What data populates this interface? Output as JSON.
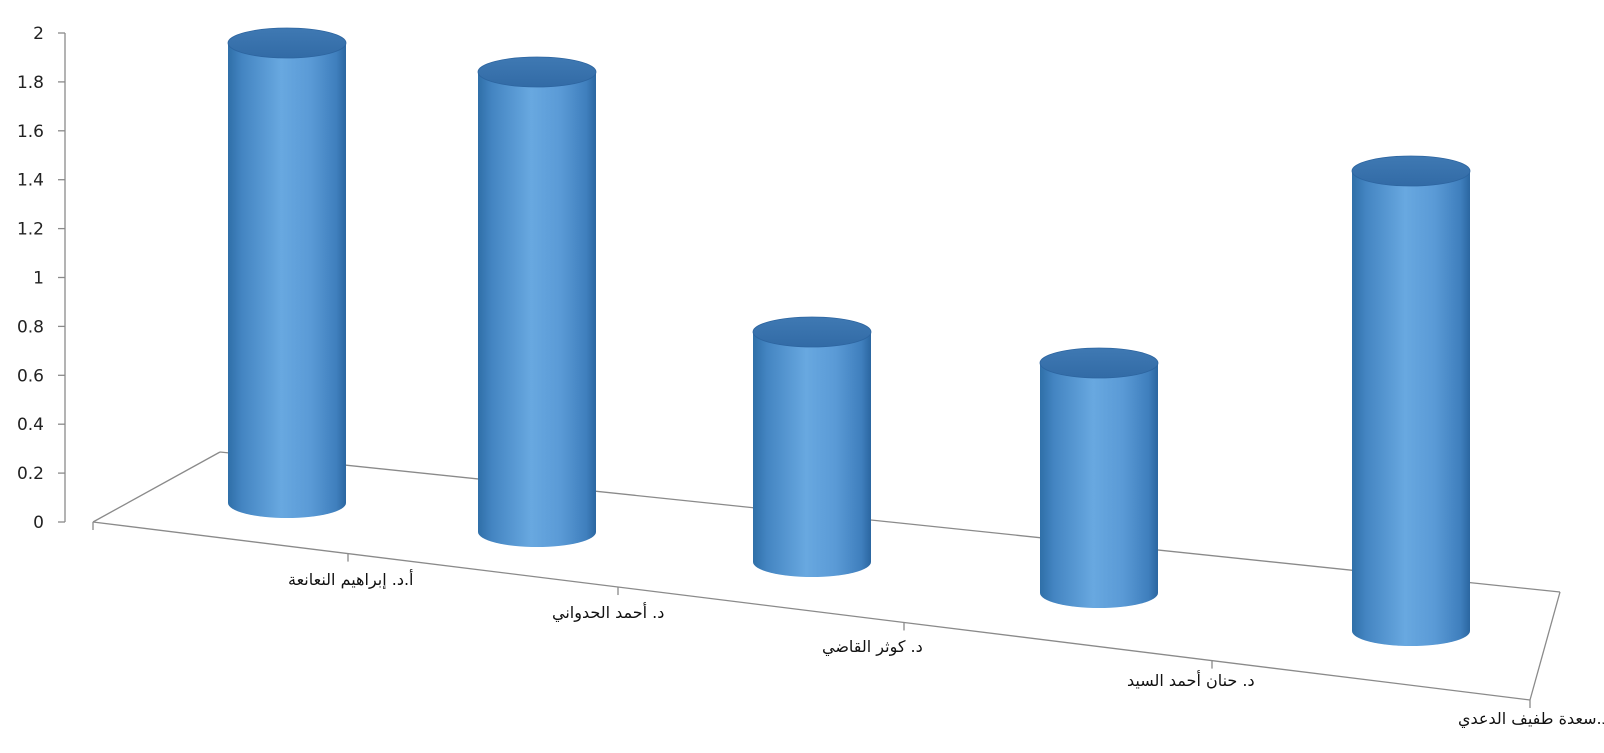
{
  "chart_data": {
    "type": "bar",
    "style": "3d-cylinder",
    "categories": [
      "أ.د. إبراهيم النعانعة",
      "د. أحمد الحدواني",
      "د. كوثر القاضي",
      "د. حنان أحمد السيد",
      "د.سعدة طفيف الدعدي"
    ],
    "values": [
      2,
      2,
      1,
      1,
      2
    ],
    "ylim": [
      0,
      2
    ],
    "yticks": [
      "0",
      "0.2",
      "0.4",
      "0.6",
      "0.8",
      "1",
      "1.2",
      "1.4",
      "1.6",
      "1.8",
      "2"
    ],
    "bar_color": "#5B9BD5",
    "title": "",
    "xlabel": "",
    "ylabel": "",
    "grid": false,
    "legend": "none"
  }
}
